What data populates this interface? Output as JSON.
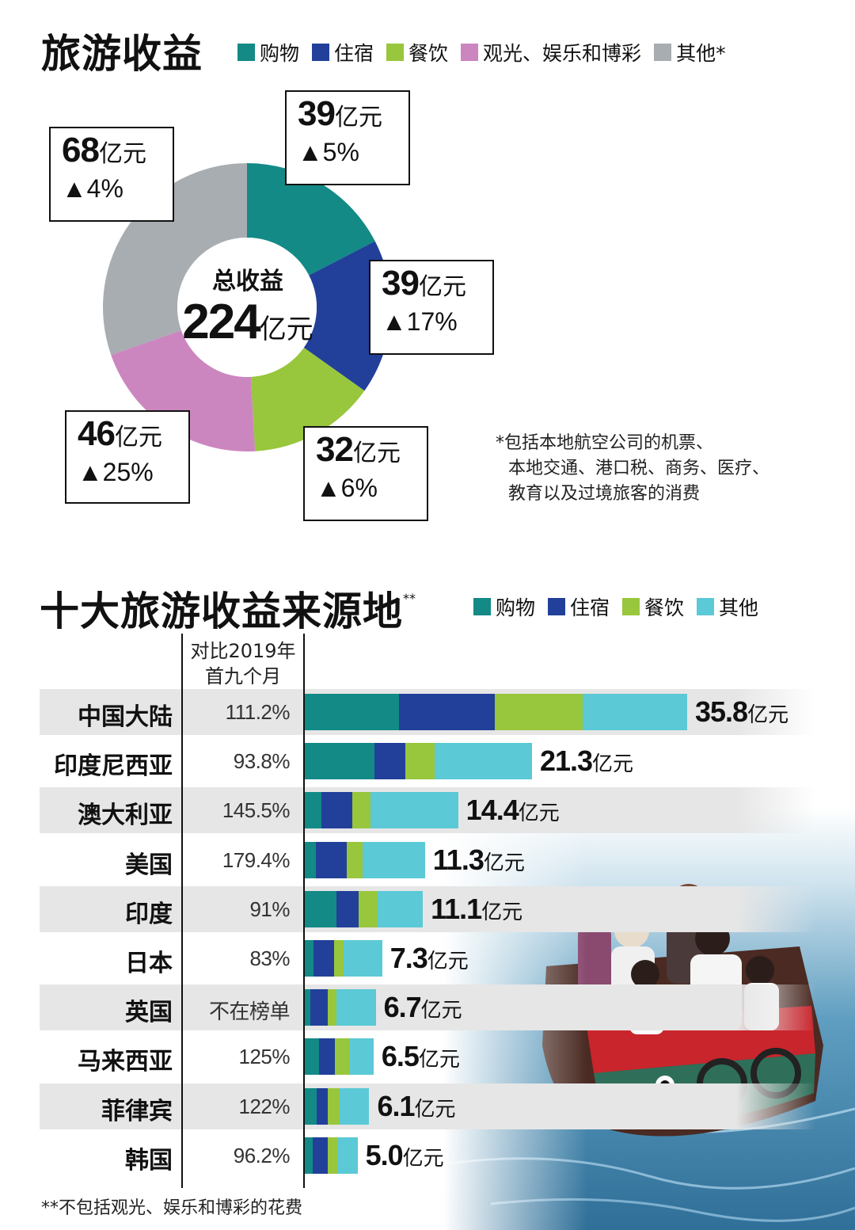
{
  "colors": {
    "shopping": "#138a86",
    "accommodation": "#22409a",
    "food": "#98c63c",
    "sightseeing": "#cc86bf",
    "other_gray": "#a8adb2",
    "other_cyan": "#5bc9d6",
    "row_stripe": "#e6e6e6"
  },
  "top": {
    "title": "旅游收益",
    "legend": [
      {
        "label": "购物",
        "color": "#138a86"
      },
      {
        "label": "住宿",
        "color": "#22409a"
      },
      {
        "label": "餐饮",
        "color": "#98c63c"
      },
      {
        "label": "观光、娱乐和博彩",
        "color": "#cc86bf"
      },
      {
        "label": "其他*",
        "color": "#a8adb2"
      }
    ],
    "center_label": "总收益",
    "center_value": "224",
    "center_unit": "亿元",
    "callouts": [
      {
        "value": "39",
        "unit": "亿元",
        "change": "▲5%"
      },
      {
        "value": "39",
        "unit": "亿元",
        "change": "▲17%"
      },
      {
        "value": "32",
        "unit": "亿元",
        "change": "▲6%"
      },
      {
        "value": "46",
        "unit": "亿元",
        "change": "▲25%"
      },
      {
        "value": "68",
        "unit": "亿元",
        "change": "▲4%"
      }
    ],
    "footnote": [
      "*包括本地航空公司的机票、",
      "本地交通、港口税、商务、医疗、",
      "教育以及过境旅客的消费"
    ]
  },
  "bottom": {
    "title": "十大旅游收益来源地",
    "title_mark": "**",
    "legend": [
      {
        "label": "购物",
        "color": "#138a86"
      },
      {
        "label": "住宿",
        "color": "#22409a"
      },
      {
        "label": "餐饮",
        "color": "#98c63c"
      },
      {
        "label": "其他",
        "color": "#5bc9d6"
      }
    ],
    "col_header": [
      "对比2019年",
      "首九个月"
    ],
    "footnote": "**不包括观光、娱乐和博彩的花费"
  },
  "chart_data": [
    {
      "type": "pie",
      "title": "旅游收益",
      "unit": "亿元",
      "total": 224,
      "labels": [
        "购物",
        "住宿",
        "餐饮",
        "观光、娱乐和博彩",
        "其他*"
      ],
      "values": [
        39,
        39,
        32,
        46,
        68
      ],
      "changes": [
        "▲5%",
        "▲17%",
        "▲6%",
        "▲25%",
        "▲4%"
      ]
    },
    {
      "type": "bar",
      "title": "十大旅游收益来源地",
      "orientation": "horizontal",
      "stacked": true,
      "unit": "亿元",
      "categories": [
        "中国大陆",
        "印度尼西亚",
        "澳大利亚",
        "美国",
        "印度",
        "日本",
        "英国",
        "马来西亚",
        "菲律宾",
        "韩国"
      ],
      "compare_2019": [
        "111.2%",
        "93.8%",
        "145.5%",
        "179.4%",
        "91%",
        "83%",
        "不在榜单",
        "125%",
        "122%",
        "96.2%"
      ],
      "totals": [
        35.8,
        21.3,
        14.4,
        11.3,
        11.1,
        7.3,
        6.7,
        6.5,
        6.1,
        5.0
      ],
      "total_labels": [
        "35.8",
        "21.3",
        "14.4",
        "11.3",
        "11.1",
        "7.3",
        "6.7",
        "6.5",
        "6.1",
        "5.0"
      ],
      "series": [
        {
          "name": "购物",
          "values": [
            8.9,
            6.6,
            1.6,
            1.1,
            3.0,
            0.9,
            0.6,
            1.4,
            1.2,
            0.8
          ]
        },
        {
          "name": "住宿",
          "values": [
            8.9,
            2.9,
            2.9,
            2.9,
            2.1,
            1.9,
            1.6,
            1.5,
            1.0,
            1.4
          ]
        },
        {
          "name": "餐饮",
          "values": [
            8.2,
            2.7,
            1.7,
            1.5,
            1.8,
            0.9,
            0.8,
            1.3,
            1.1,
            0.9
          ]
        },
        {
          "name": "其他",
          "values": [
            9.8,
            9.1,
            8.2,
            5.8,
            4.2,
            3.6,
            3.7,
            2.3,
            2.8,
            1.9
          ]
        }
      ],
      "xlim": [
        0,
        35.8
      ]
    }
  ]
}
